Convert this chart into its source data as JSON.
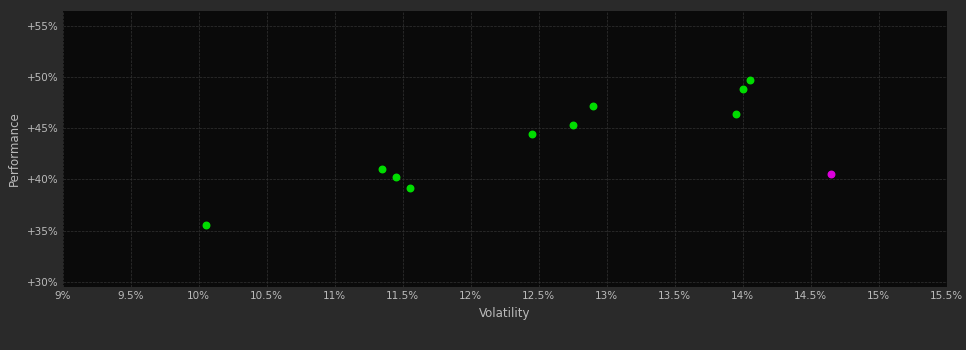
{
  "background_color": "#2a2a2a",
  "plot_bg_color": "#0a0a0a",
  "grid_color": "#333333",
  "xlabel": "Volatility",
  "ylabel": "Performance",
  "xlim": [
    0.09,
    0.155
  ],
  "ylim": [
    0.295,
    0.565
  ],
  "xticks": [
    0.09,
    0.095,
    0.1,
    0.105,
    0.11,
    0.115,
    0.12,
    0.125,
    0.13,
    0.135,
    0.14,
    0.145,
    0.15,
    0.155
  ],
  "yticks": [
    0.3,
    0.35,
    0.4,
    0.45,
    0.5,
    0.55
  ],
  "green_points": [
    [
      0.1005,
      0.356
    ],
    [
      0.1135,
      0.41
    ],
    [
      0.1145,
      0.402
    ],
    [
      0.1155,
      0.392
    ],
    [
      0.1245,
      0.444
    ],
    [
      0.1275,
      0.453
    ],
    [
      0.129,
      0.472
    ],
    [
      0.1395,
      0.464
    ],
    [
      0.14,
      0.488
    ],
    [
      0.1405,
      0.497
    ]
  ],
  "magenta_points": [
    [
      0.1465,
      0.405
    ]
  ],
  "green_color": "#00dd00",
  "magenta_color": "#dd00dd",
  "marker_size": 22,
  "tick_label_color": "#bbbbbb",
  "axis_label_color": "#bbbbbb",
  "tick_fontsize": 7.5,
  "label_fontsize": 8.5
}
